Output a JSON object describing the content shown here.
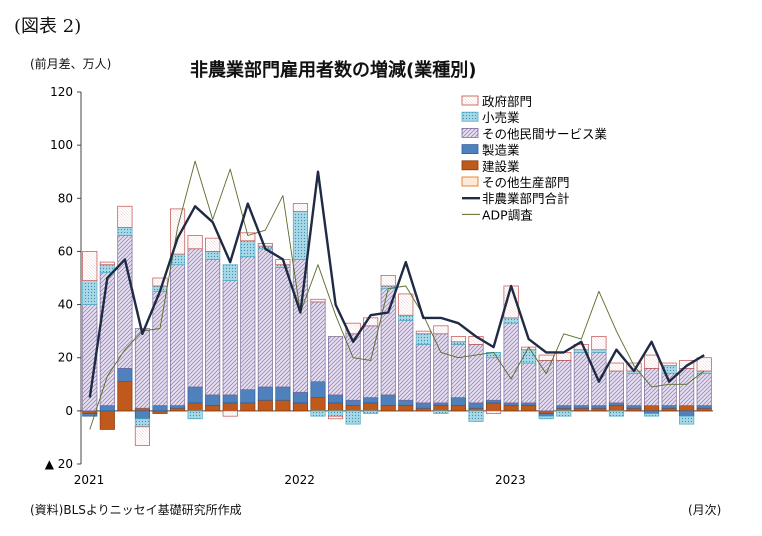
{
  "figure_number": "(図表 2)",
  "unit_label": "(前月差、万人)",
  "source": "(資料)BLSよりニッセイ基礎研究所作成",
  "x_unit": "(月次)",
  "colors": {
    "gov": "#c0504d",
    "retail": "#4bacc6",
    "otherServices": "#8064a2",
    "manufacturing": "#4f81bd",
    "construction": "#c05a1c",
    "otherGoods": "#e46c0a",
    "total": "#1f2a44",
    "adp": "#5a6b2a"
  },
  "chart_data": {
    "type": "bar",
    "stacked": true,
    "title": "非農業部門雇用者数の増減(業種別)",
    "ylim": [
      -20,
      120
    ],
    "yticks": [
      -20,
      0,
      20,
      40,
      60,
      80,
      100,
      120
    ],
    "ytick_labels": [
      "▲ 20",
      "0",
      "20",
      "40",
      "60",
      "80",
      "100",
      "120"
    ],
    "xtick_labels": [
      {
        "label": "2021",
        "index": 0
      },
      {
        "label": "2022",
        "index": 12
      },
      {
        "label": "2023",
        "index": 24
      }
    ],
    "legend_position": "top-right",
    "x": [
      "2021-01",
      "2021-02",
      "2021-03",
      "2021-04",
      "2021-05",
      "2021-06",
      "2021-07",
      "2021-08",
      "2021-09",
      "2021-10",
      "2021-11",
      "2021-12",
      "2022-01",
      "2022-02",
      "2022-03",
      "2022-04",
      "2022-05",
      "2022-06",
      "2022-07",
      "2022-08",
      "2022-09",
      "2022-10",
      "2022-11",
      "2022-12",
      "2023-01",
      "2023-02",
      "2023-03",
      "2023-04",
      "2023-05",
      "2023-06",
      "2023-07",
      "2023-08",
      "2023-09",
      "2023-10",
      "2023-11",
      "2023-12"
    ],
    "series": [
      {
        "key": "gov",
        "name": "政府部門",
        "kind": "bar",
        "values": [
          11,
          1,
          8,
          -7,
          3,
          17,
          5,
          5,
          -2,
          3,
          1,
          2,
          3,
          1,
          -1,
          4,
          3,
          4,
          8,
          1,
          3,
          2,
          3,
          -1,
          12,
          1,
          2,
          3,
          2,
          5,
          3,
          3,
          5,
          1,
          3,
          5
        ]
      },
      {
        "key": "retail",
        "name": "小売業",
        "kind": "bar",
        "values": [
          9,
          3,
          3,
          -3,
          2,
          4,
          -3,
          3,
          6,
          6,
          1,
          1,
          18,
          -2,
          -2,
          -5,
          -1,
          1,
          2,
          4,
          -1,
          1,
          -4,
          2,
          2,
          5,
          -1,
          -2,
          1,
          1,
          -2,
          1,
          -1,
          3,
          -3,
          1
        ]
      },
      {
        "key": "otherServices",
        "name": "その他民間サービス業",
        "kind": "bar",
        "values": [
          40,
          50,
          50,
          30,
          43,
          53,
          52,
          51,
          43,
          50,
          52,
          45,
          50,
          30,
          22,
          25,
          27,
          40,
          30,
          22,
          26,
          20,
          22,
          16,
          30,
          15,
          19,
          17,
          20,
          20,
          12,
          12,
          14,
          12,
          14,
          12
        ]
      },
      {
        "key": "manufacturing",
        "name": "製造業",
        "kind": "bar",
        "values": [
          -1,
          2,
          5,
          -3,
          2,
          1,
          6,
          4,
          3,
          5,
          5,
          5,
          4,
          6,
          3,
          2,
          2,
          4,
          2,
          2,
          1,
          3,
          2,
          1,
          1,
          1,
          -1,
          1,
          1,
          1,
          1,
          1,
          -1,
          1,
          -2,
          1
        ]
      },
      {
        "key": "construction",
        "name": "建設業",
        "kind": "bar",
        "values": [
          -1,
          -7,
          11,
          1,
          -1,
          1,
          3,
          2,
          3,
          3,
          4,
          4,
          3,
          5,
          3,
          2,
          3,
          2,
          2,
          1,
          2,
          2,
          1,
          3,
          2,
          2,
          -1,
          1,
          1,
          1,
          2,
          1,
          2,
          1,
          2,
          1
        ]
      },
      {
        "key": "otherGoods",
        "name": "その他生産部門",
        "kind": "bar",
        "values": [
          0,
          0,
          0,
          0,
          0,
          0,
          0,
          0,
          0,
          0,
          0,
          0,
          0,
          0,
          0,
          0,
          0,
          0,
          0,
          0,
          0,
          0,
          0,
          0,
          0,
          0,
          0,
          0,
          0,
          0,
          0,
          0,
          0,
          0,
          0,
          0
        ]
      },
      {
        "key": "total",
        "name": "非農業部門合計",
        "kind": "line",
        "values": [
          5,
          50,
          57,
          29,
          45,
          65,
          77,
          71,
          56,
          78,
          61,
          57,
          37,
          90,
          40,
          26,
          36,
          37,
          56,
          35,
          35,
          33,
          28,
          24,
          47,
          27,
          22,
          22,
          26,
          11,
          23,
          15,
          26,
          11,
          17,
          21
        ]
      },
      {
        "key": "adp",
        "name": "ADP調査",
        "kind": "line",
        "values": [
          -7,
          13,
          23,
          30,
          31,
          69,
          94,
          72,
          91,
          66,
          68,
          81,
          37,
          55,
          36,
          20,
          19,
          46,
          47,
          36,
          22,
          20,
          21,
          22,
          12,
          24,
          14,
          29,
          27,
          45,
          30,
          17,
          9,
          10,
          10,
          15
        ]
      }
    ]
  }
}
